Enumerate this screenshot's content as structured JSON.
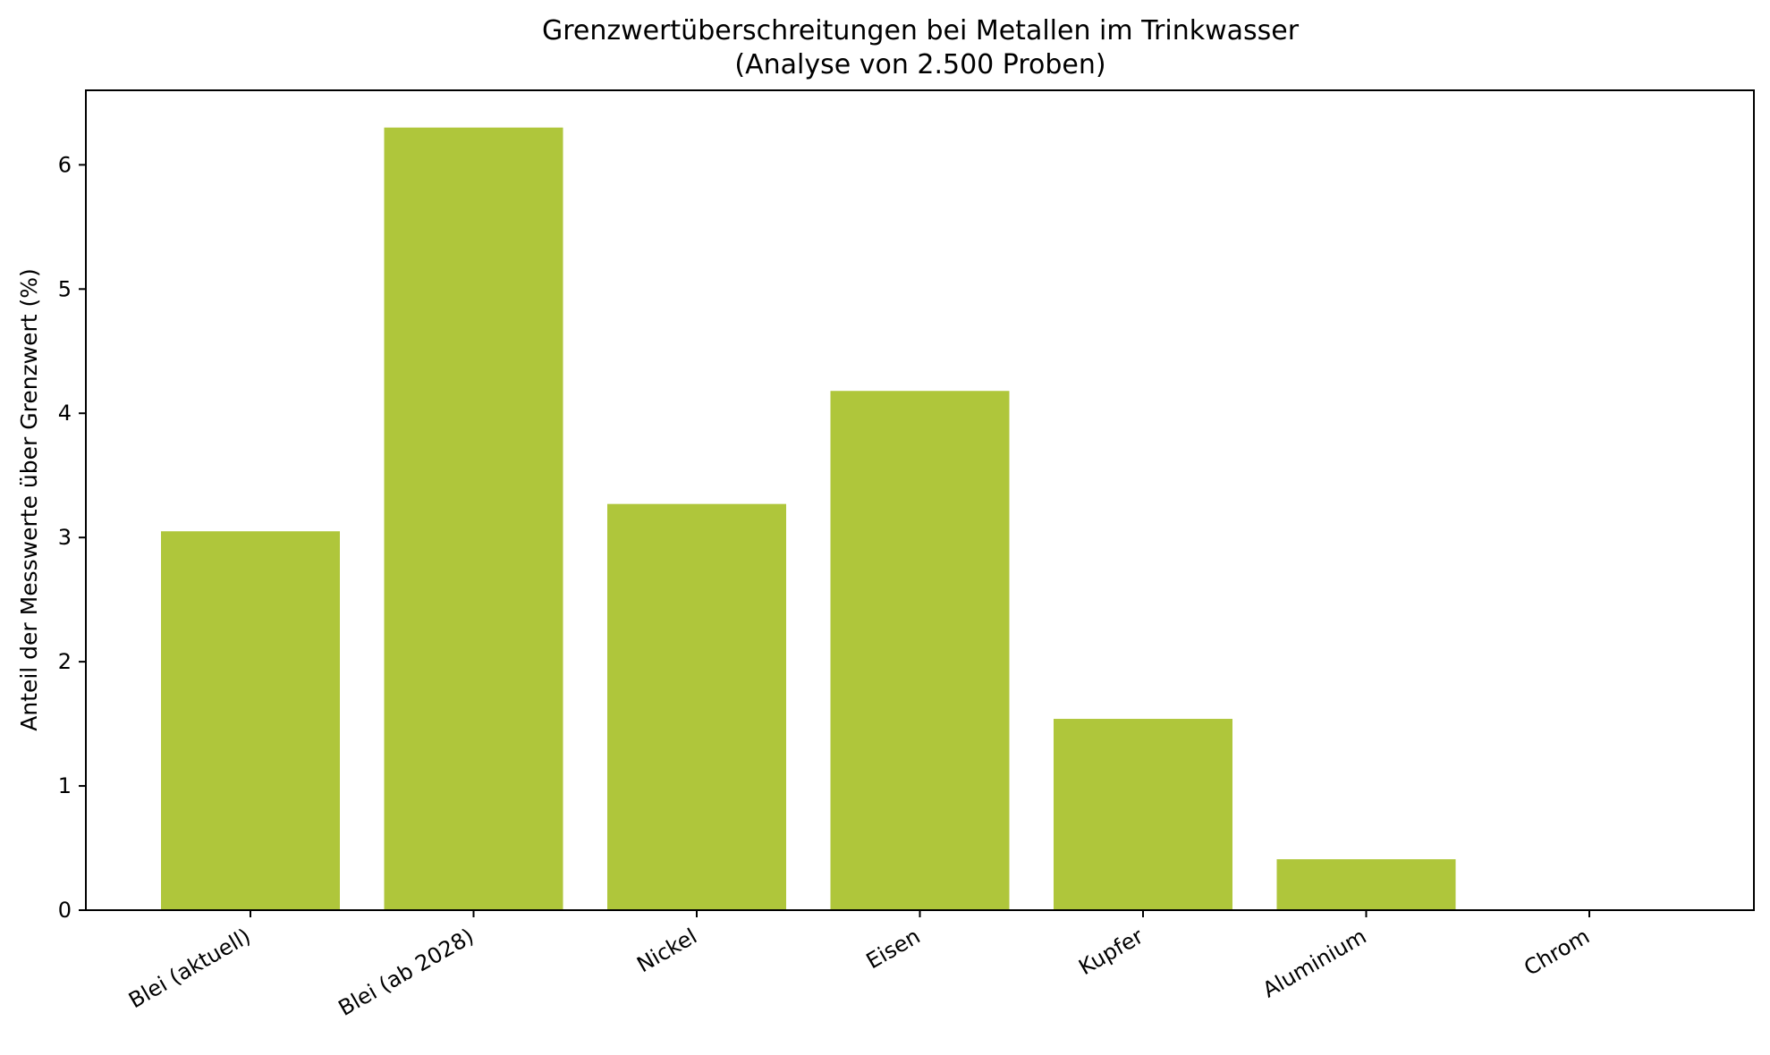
{
  "chart_data": {
    "type": "bar",
    "title": "Grenzwertüberschreitungen bei Metallen im Trinkwasser",
    "subtitle": "(Analyse von 2.500 Proben)",
    "xlabel": "",
    "ylabel": "Anteil der Messwerte über Grenzwert (%)",
    "categories": [
      "Blei (aktuell)",
      "Blei (ab 2028)",
      "Nickel",
      "Eisen",
      "Kupfer",
      "Aluminium",
      "Chrom"
    ],
    "values": [
      3.05,
      6.3,
      3.27,
      4.18,
      1.54,
      0.41,
      0.0
    ],
    "ylim": [
      0,
      6.6
    ],
    "yticks": [
      0,
      1,
      2,
      3,
      4,
      5,
      6
    ],
    "bar_color": "#afc63b",
    "grid": false,
    "legend": "none"
  }
}
